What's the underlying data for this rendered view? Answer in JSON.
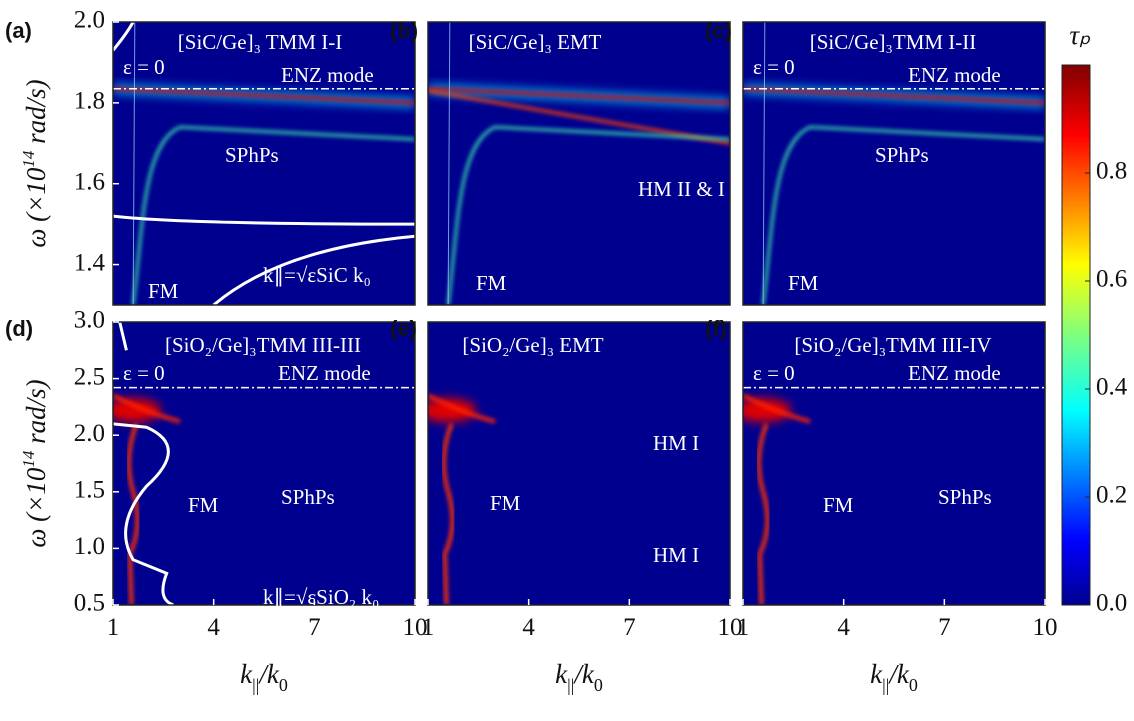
{
  "chart_data": [
    {
      "type": "heatmap",
      "panel_label": "(a)",
      "title": "[SiC/Ge]₃ TMM I-I",
      "annotations": [
        "ε = 0",
        "ENZ mode",
        "SPhPs",
        "FM",
        "k∥=√εSiC k₀"
      ],
      "xlim": [
        1,
        10
      ],
      "ylim": [
        1.3,
        2.0
      ],
      "yticks": [
        1.4,
        1.6,
        1.8,
        {
          "value": 2.0,
          "label": "2.0"
        }
      ],
      "ylabel": [
        "ω (×10",
        "14",
        " rad/s)"
      ]
    },
    {
      "type": "heatmap",
      "panel_label": "(b)",
      "title": "[SiC/Ge]₃ EMT",
      "annotations": [
        "HM II & I",
        "FM"
      ],
      "xlim": [
        1,
        10
      ],
      "ylim": [
        1.3,
        2.0
      ]
    },
    {
      "type": "heatmap",
      "panel_label": "(c)",
      "title": "[SiC/Ge]₃TMM I-II",
      "annotations": [
        "ε = 0",
        "ENZ mode",
        "SPhPs",
        "FM"
      ],
      "xlim": [
        1,
        10
      ],
      "ylim": [
        1.3,
        2.0
      ]
    },
    {
      "type": "heatmap",
      "panel_label": "(d)",
      "title": "[SiO₂/Ge]₃TMM III-III",
      "annotations": [
        "ε = 0",
        "ENZ mode",
        "FM",
        "SPhPs",
        "k∥=√εSiO₂ k₀"
      ],
      "xlim": [
        1,
        10
      ],
      "ylim": [
        0.5,
        3.0
      ],
      "xticks": [
        1,
        4,
        7,
        10
      ],
      "xlabel": [
        "k",
        "||",
        "/k",
        "0"
      ],
      "yticks": [
        0.5,
        {
          "value": 1.0,
          "label": "1.0"
        },
        1.5,
        {
          "value": 2.0,
          "label": "2.0"
        },
        2.5,
        {
          "value": 3.0,
          "label": "3.0"
        }
      ],
      "ylabel": [
        "ω (×10",
        "14",
        " rad/s)"
      ]
    },
    {
      "type": "heatmap",
      "panel_label": "(e)",
      "title": "[SiO₂/Ge]₃ EMT",
      "annotations": [
        "HM I",
        "FM",
        "HM I"
      ],
      "xlim": [
        1,
        10
      ],
      "ylim": [
        0.5,
        3.0
      ],
      "xticks": [
        1,
        4,
        7,
        10
      ],
      "xlabel": [
        "k",
        "||",
        "/k",
        "0"
      ]
    },
    {
      "type": "heatmap",
      "panel_label": "(f)",
      "title": "[SiO₂/Ge]₃TMM III-IV",
      "annotations": [
        "ε = 0",
        "ENZ mode",
        "FM",
        "SPhPs"
      ],
      "xlim": [
        1,
        10
      ],
      "ylim": [
        0.5,
        3.0
      ],
      "xticks": [
        1,
        4,
        7,
        10
      ],
      "xlabel": [
        "k",
        "||",
        "/k",
        "0"
      ]
    },
    {
      "type": "colorbar",
      "label": "τₚ",
      "clim": [
        0,
        1
      ],
      "ticks": [
        {
          "value": 0.0,
          "label": "0.0"
        },
        0.2,
        0.4,
        0.6,
        0.8
      ]
    }
  ]
}
